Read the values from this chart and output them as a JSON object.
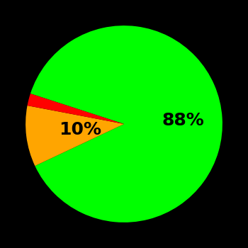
{
  "slices": [
    88,
    10,
    2
  ],
  "colors": [
    "#00ff00",
    "#ffa500",
    "#ff0000"
  ],
  "labels": [
    "88%",
    "10%",
    ""
  ],
  "background_color": "#000000",
  "label_fontsize": 18,
  "label_fontweight": "bold",
  "startangle": 162,
  "figsize": [
    3.5,
    3.5
  ],
  "dpi": 100
}
